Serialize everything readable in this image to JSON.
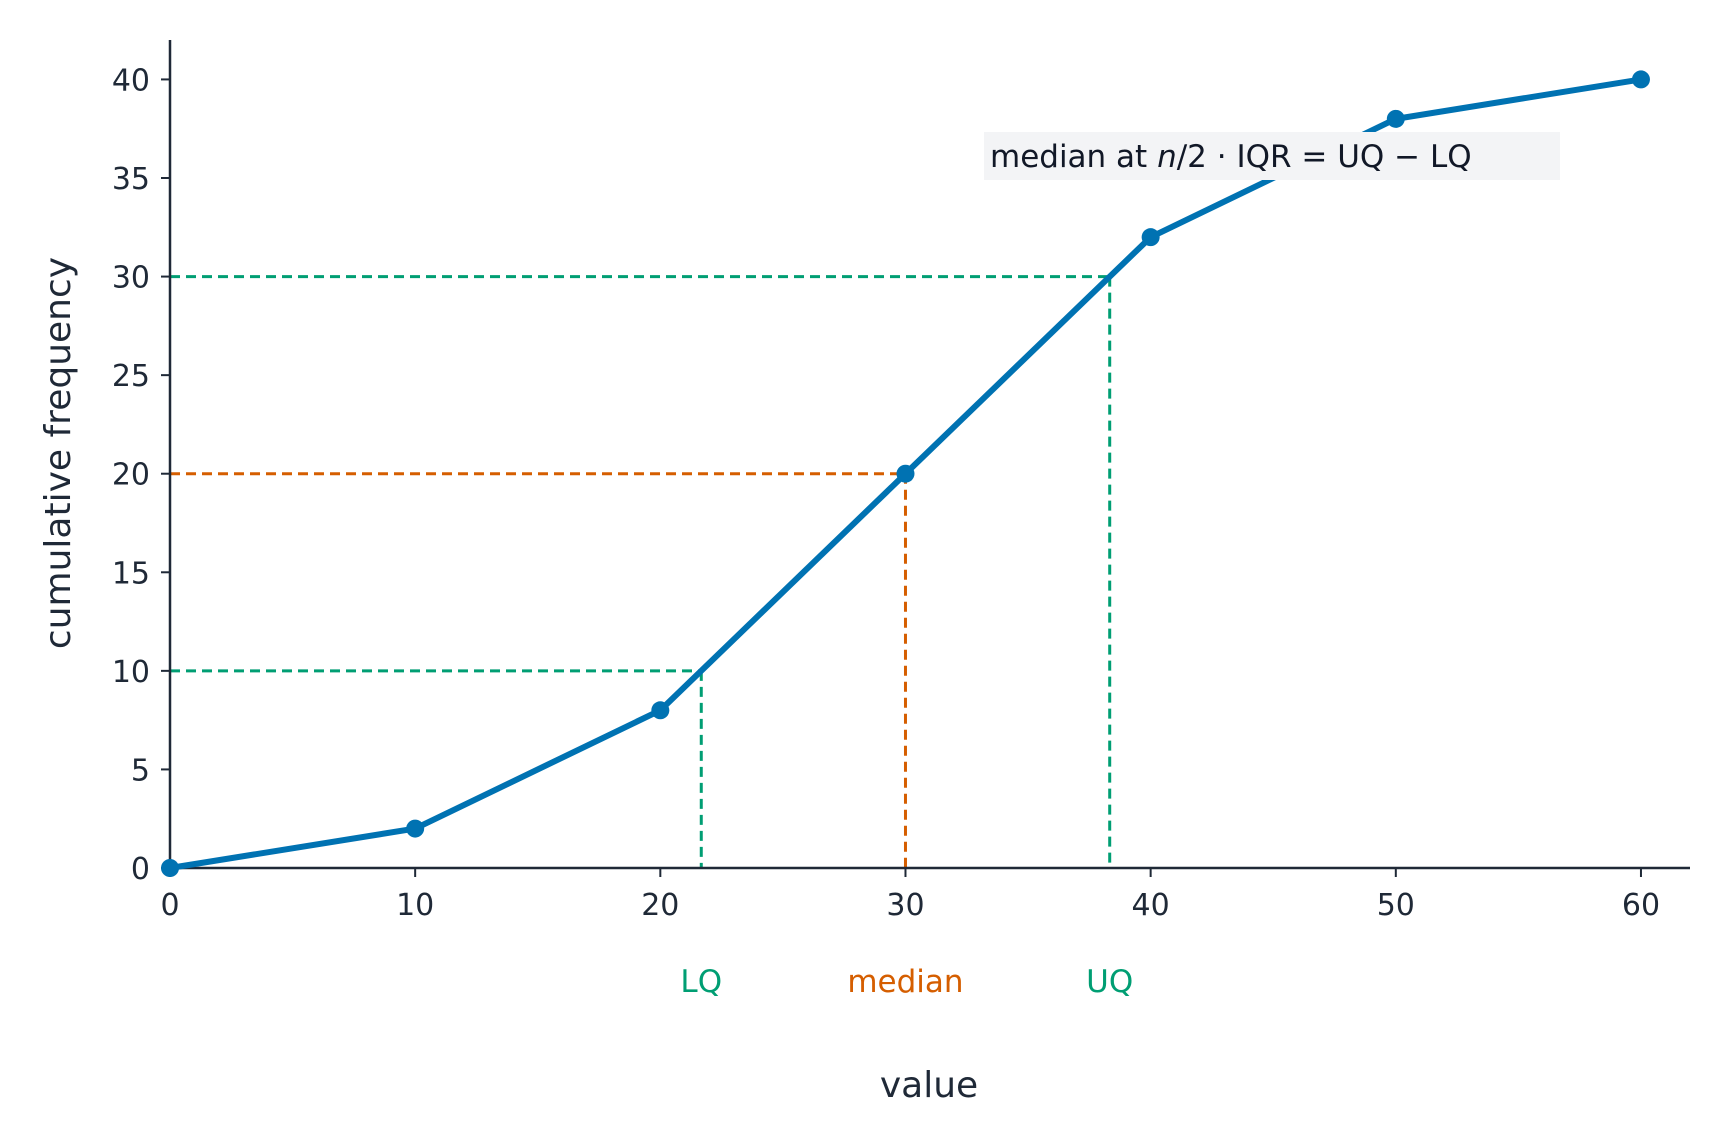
{
  "chart_data": {
    "type": "line",
    "xlabel": "value",
    "ylabel": "cumulative frequency",
    "xlim": [
      0,
      62
    ],
    "ylim": [
      0,
      42
    ],
    "x_ticks": [
      0,
      10,
      20,
      30,
      40,
      50,
      60
    ],
    "y_ticks": [
      0,
      5,
      10,
      15,
      20,
      25,
      30,
      35,
      40
    ],
    "grid": false,
    "series": [
      {
        "x": [
          0,
          10,
          20,
          30,
          40,
          50,
          60
        ],
        "y": [
          0,
          2,
          8,
          20,
          32,
          38,
          40
        ]
      }
    ],
    "reference_lines": [
      {
        "label": "LQ",
        "y": 10,
        "x": 21.67,
        "color": "#009e73"
      },
      {
        "label": "median",
        "y": 20,
        "x": 30,
        "color": "#d55e00"
      },
      {
        "label": "UQ",
        "y": 30,
        "x": 38.33,
        "color": "#009e73"
      }
    ],
    "annotation": {
      "text_prefix": "median at ",
      "text_n": "n",
      "text_suffix": "/2  ·  IQR = UQ − LQ"
    },
    "colors": {
      "line": "#0072b2",
      "axis": "#1f2937"
    }
  }
}
